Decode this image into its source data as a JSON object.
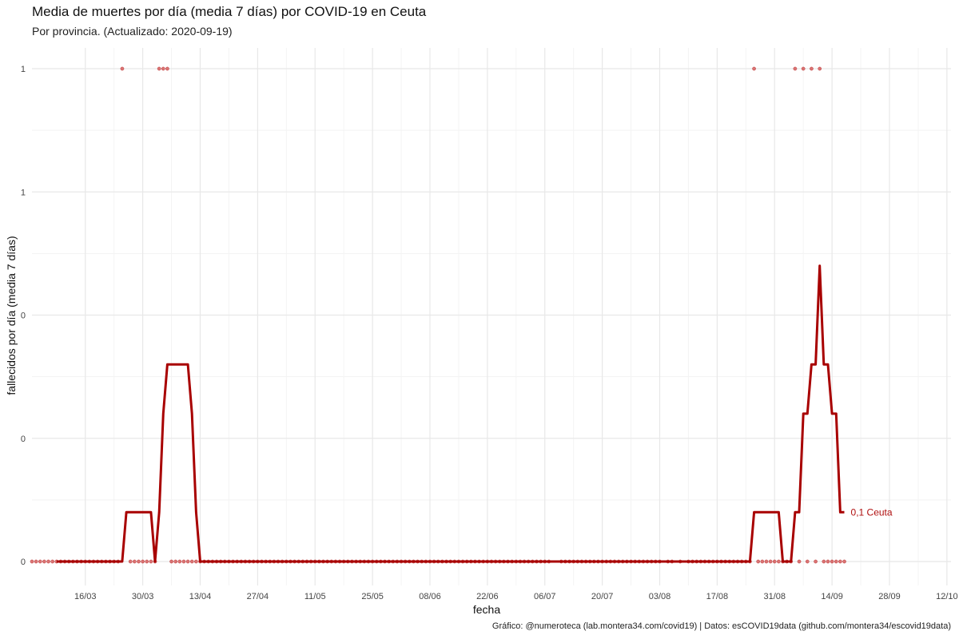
{
  "title": "Media de muertes por día (media 7 días) por COVID-19 en Ceuta",
  "subtitle": "Por provincia. (Actualizado: 2020-09-19)",
  "caption": "Gráfico: @numeroteca (lab.montera34.com/covid19) | Datos: esCOVID19data (github.com/montera34/escovid19data)",
  "colors": {
    "line": "#a80000",
    "points": "#d24a4a",
    "grid": "#e8e8e8"
  },
  "chart_data": {
    "type": "line",
    "title": "Media de muertes por día (media 7 días) por COVID-19 en Ceuta",
    "subtitle": "Por provincia. (Actualizado: 2020-09-19)",
    "xlabel": "fecha",
    "ylabel": "fallecidos por día (media 7 días)",
    "xlim": [
      "2020-03-03",
      "2020-10-12"
    ],
    "ylim": [
      0,
      1.2
    ],
    "y_ticks": [
      {
        "value": 0,
        "label": "0"
      },
      {
        "value": 0.3,
        "label": "0"
      },
      {
        "value": 0.6,
        "label": "0"
      },
      {
        "value": 0.9,
        "label": "1"
      },
      {
        "value": 1.2,
        "label": "1"
      }
    ],
    "x_ticks": [
      {
        "date": "2020-03-16",
        "label": "16/03"
      },
      {
        "date": "2020-03-30",
        "label": "30/03"
      },
      {
        "date": "2020-04-13",
        "label": "13/04"
      },
      {
        "date": "2020-04-27",
        "label": "27/04"
      },
      {
        "date": "2020-05-11",
        "label": "11/05"
      },
      {
        "date": "2020-05-25",
        "label": "25/05"
      },
      {
        "date": "2020-06-08",
        "label": "08/06"
      },
      {
        "date": "2020-06-22",
        "label": "22/06"
      },
      {
        "date": "2020-07-06",
        "label": "06/07"
      },
      {
        "date": "2020-07-20",
        "label": "20/07"
      },
      {
        "date": "2020-08-03",
        "label": "03/08"
      },
      {
        "date": "2020-08-17",
        "label": "17/08"
      },
      {
        "date": "2020-08-31",
        "label": "31/08"
      },
      {
        "date": "2020-09-14",
        "label": "14/09"
      },
      {
        "date": "2020-09-28",
        "label": "28/09"
      },
      {
        "date": "2020-10-12",
        "label": "12/10"
      }
    ],
    "grid": true,
    "series": [
      {
        "name": "Ceuta",
        "kind": "line",
        "end_label": "0,1 Ceuta",
        "points": [
          {
            "x": "2020-03-09",
            "y": 0
          },
          {
            "x": "2020-03-25",
            "y": 0
          },
          {
            "x": "2020-03-26",
            "y": 0.12
          },
          {
            "x": "2020-04-01",
            "y": 0.12
          },
          {
            "x": "2020-04-02",
            "y": 0
          },
          {
            "x": "2020-04-03",
            "y": 0.12
          },
          {
            "x": "2020-04-04",
            "y": 0.36
          },
          {
            "x": "2020-04-05",
            "y": 0.48
          },
          {
            "x": "2020-04-10",
            "y": 0.48
          },
          {
            "x": "2020-04-11",
            "y": 0.36
          },
          {
            "x": "2020-04-12",
            "y": 0.12
          },
          {
            "x": "2020-04-13",
            "y": 0
          },
          {
            "x": "2020-08-25",
            "y": 0
          },
          {
            "x": "2020-08-26",
            "y": 0.12
          },
          {
            "x": "2020-09-01",
            "y": 0.12
          },
          {
            "x": "2020-09-02",
            "y": 0
          },
          {
            "x": "2020-09-04",
            "y": 0
          },
          {
            "x": "2020-09-05",
            "y": 0.12
          },
          {
            "x": "2020-09-06",
            "y": 0.12
          },
          {
            "x": "2020-09-07",
            "y": 0.36
          },
          {
            "x": "2020-09-08",
            "y": 0.36
          },
          {
            "x": "2020-09-09",
            "y": 0.48
          },
          {
            "x": "2020-09-10",
            "y": 0.48
          },
          {
            "x": "2020-09-11",
            "y": 0.72
          },
          {
            "x": "2020-09-12",
            "y": 0.48
          },
          {
            "x": "2020-09-13",
            "y": 0.48
          },
          {
            "x": "2020-09-14",
            "y": 0.36
          },
          {
            "x": "2020-09-15",
            "y": 0.36
          },
          {
            "x": "2020-09-16",
            "y": 0.12
          },
          {
            "x": "2020-09-17",
            "y": 0.12
          }
        ]
      },
      {
        "name": "Ceuta",
        "kind": "daily_points",
        "points_value_1": [
          "2020-03-25",
          "2020-04-03",
          "2020-04-04",
          "2020-04-05",
          "2020-08-26",
          "2020-09-05",
          "2020-09-07",
          "2020-09-09",
          "2020-09-11"
        ],
        "points_value_0_ranges": [
          [
            "2020-03-03",
            "2020-03-24"
          ],
          [
            "2020-03-27",
            "2020-04-02"
          ],
          [
            "2020-04-06",
            "2020-07-07"
          ],
          [
            "2020-07-10",
            "2020-08-03"
          ],
          [
            "2020-08-05",
            "2020-08-06"
          ],
          [
            "2020-08-08",
            "2020-08-08"
          ],
          [
            "2020-08-10",
            "2020-08-25"
          ],
          [
            "2020-08-27",
            "2020-09-04"
          ],
          [
            "2020-09-06",
            "2020-09-06"
          ],
          [
            "2020-09-08",
            "2020-09-08"
          ],
          [
            "2020-09-10",
            "2020-09-10"
          ],
          [
            "2020-09-12",
            "2020-09-17"
          ]
        ]
      }
    ]
  }
}
